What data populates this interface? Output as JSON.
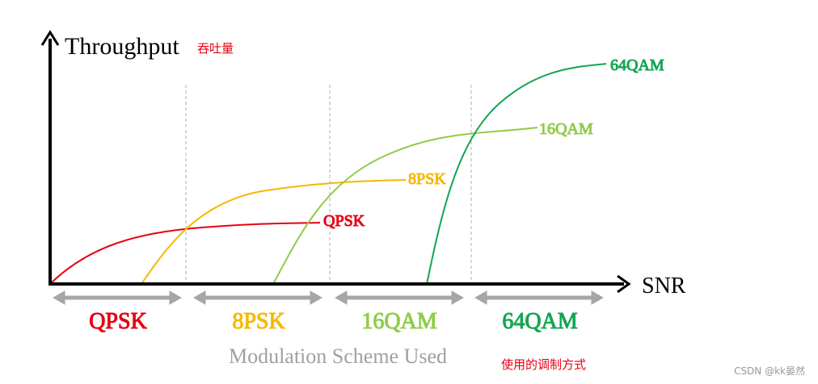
{
  "axes": {
    "y_label": "Throughput",
    "y_label_note": "吞吐量",
    "x_label": "SNR"
  },
  "curves": [
    {
      "label": "QPSK"
    },
    {
      "label": "8PSK"
    },
    {
      "label": "16QAM"
    },
    {
      "label": "64QAM"
    }
  ],
  "regions": [
    {
      "label": "QPSK"
    },
    {
      "label": "8PSK"
    },
    {
      "label": "16QAM"
    },
    {
      "label": "64QAM"
    }
  ],
  "footer": {
    "title": "Modulation Scheme Used",
    "note": "使用的调制方式"
  },
  "watermark": "CSDN @kk晏然"
}
